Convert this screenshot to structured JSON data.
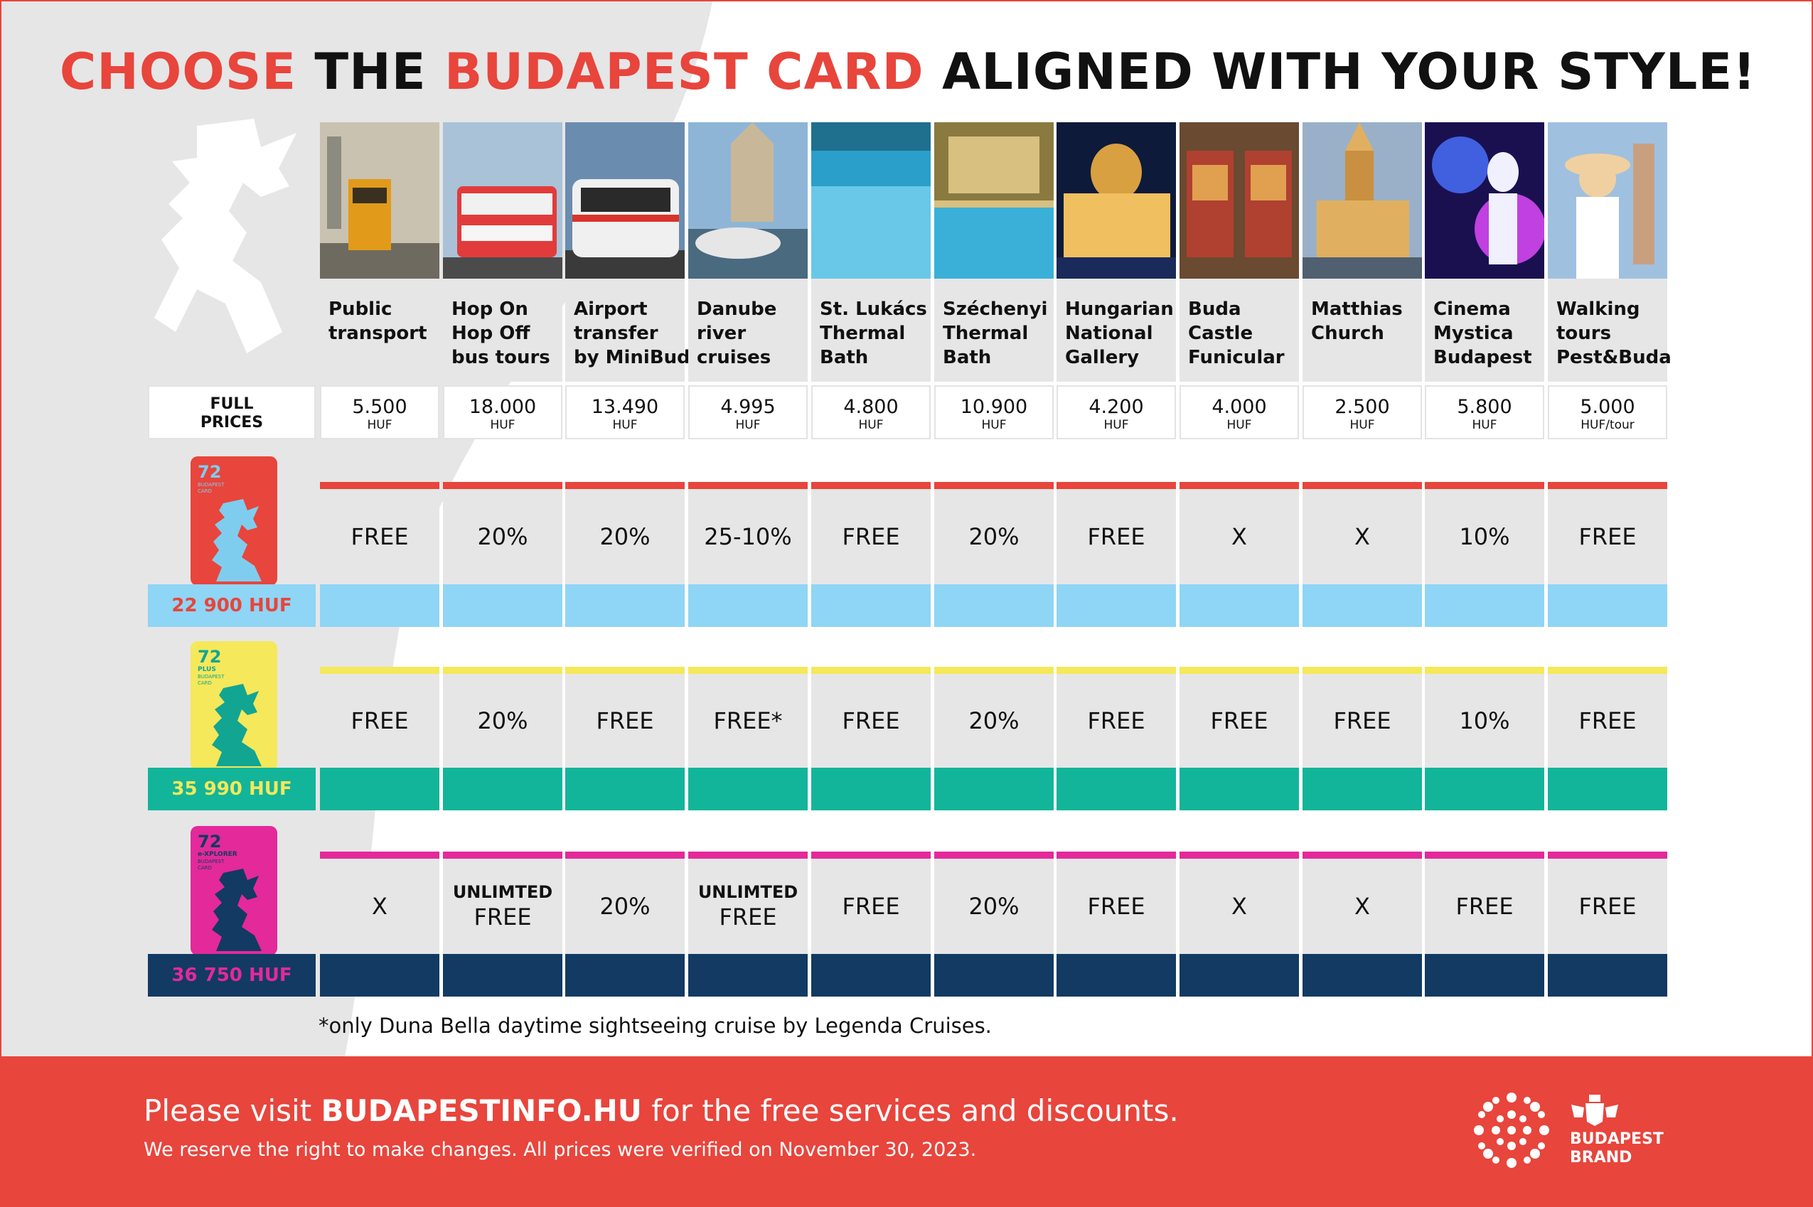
{
  "title": {
    "part1": "CHOOSE",
    "part2": "THE",
    "part3": "BUDAPEST CARD",
    "part4": "ALIGNED WITH YOUR STYLE!"
  },
  "colors": {
    "accent_red": "#e8453c",
    "gray_cell": "#e6e6e7",
    "card1_red": "#e8453c",
    "card1_band": "#8fd5f5",
    "card1_label_text": "#e8453c",
    "card2_yellow": "#f5e85a",
    "card2_band": "#12b59a",
    "card2_label_text": "#f5e85a",
    "card3_pink": "#e4299a",
    "card3_band": "#123a63",
    "card3_label_text": "#e4299a"
  },
  "full_prices_label": [
    "FULL",
    "PRICES"
  ],
  "attractions": [
    {
      "name": [
        "Public",
        "transport"
      ],
      "price": "5.500",
      "unit": "HUF",
      "image_icon": "tram-photo"
    },
    {
      "name": [
        "Hop On",
        "Hop Off",
        "bus tours"
      ],
      "price": "18.000",
      "unit": "HUF",
      "image_icon": "double-decker-bus-photo"
    },
    {
      "name": [
        "Airport",
        "transfer",
        "by MiniBud"
      ],
      "price": "13.490",
      "unit": "HUF",
      "image_icon": "minibus-photo"
    },
    {
      "name": [
        "Danube",
        "river",
        "cruises"
      ],
      "price": "4.995",
      "unit": "HUF",
      "image_icon": "river-boat-photo"
    },
    {
      "name": [
        "St. Lukács",
        "Thermal",
        "Bath"
      ],
      "price": "4.800",
      "unit": "HUF",
      "image_icon": "pool-photo"
    },
    {
      "name": [
        "Széchenyi",
        "Thermal",
        "Bath"
      ],
      "price": "10.900",
      "unit": "HUF",
      "image_icon": "thermal-bath-photo"
    },
    {
      "name": [
        "Hungarian",
        "National",
        "Gallery"
      ],
      "price": "4.200",
      "unit": "HUF",
      "image_icon": "castle-night-photo"
    },
    {
      "name": [
        "Buda",
        "Castle",
        "Funicular"
      ],
      "price": "4.000",
      "unit": "HUF",
      "image_icon": "funicular-photo"
    },
    {
      "name": [
        "Matthias",
        "Church"
      ],
      "price": "2.500",
      "unit": "HUF",
      "image_icon": "church-photo"
    },
    {
      "name": [
        "Cinema",
        "Mystica",
        "Budapest"
      ],
      "price": "5.800",
      "unit": "HUF",
      "image_icon": "cinema-photo"
    },
    {
      "name": [
        "Walking",
        "tours",
        "Pest&Buda"
      ],
      "price": "5.000",
      "unit": "HUF/tour",
      "image_icon": "walking-tour-photo"
    }
  ],
  "cards": [
    {
      "price_label": "22 900 HUF",
      "card_text": {
        "hours": "72",
        "line1": "BUDAPEST",
        "line2": "CARD"
      },
      "values": [
        {
          "main": "FREE"
        },
        {
          "main": "20%"
        },
        {
          "main": "20%"
        },
        {
          "main": "25-10%"
        },
        {
          "main": "FREE"
        },
        {
          "main": "20%"
        },
        {
          "main": "FREE"
        },
        {
          "main": "X"
        },
        {
          "main": "X"
        },
        {
          "main": "10%"
        },
        {
          "main": "FREE"
        }
      ]
    },
    {
      "price_label": "35 990 HUF",
      "card_text": {
        "hours": "72",
        "line0": "PLUS",
        "line1": "BUDAPEST",
        "line2": "CARD"
      },
      "values": [
        {
          "main": "FREE"
        },
        {
          "main": "20%"
        },
        {
          "main": "FREE"
        },
        {
          "main": "FREE*"
        },
        {
          "main": "FREE"
        },
        {
          "main": "20%"
        },
        {
          "main": "FREE"
        },
        {
          "main": "FREE"
        },
        {
          "main": "FREE"
        },
        {
          "main": "10%"
        },
        {
          "main": "FREE"
        }
      ]
    },
    {
      "price_label": "36 750 HUF",
      "card_text": {
        "hours": "72",
        "line0": "e-XPLORER",
        "line1": "BUDAPEST",
        "line2": "CARD"
      },
      "values": [
        {
          "main": "X"
        },
        {
          "sub": "UNLIMTED",
          "main": "FREE"
        },
        {
          "main": "20%"
        },
        {
          "sub": "UNLIMTED",
          "main": "FREE"
        },
        {
          "main": "FREE"
        },
        {
          "main": "20%"
        },
        {
          "main": "FREE"
        },
        {
          "main": "X"
        },
        {
          "main": "X"
        },
        {
          "main": "FREE"
        },
        {
          "main": "FREE"
        }
      ]
    }
  ],
  "footnote": "*only Duna Bella daytime sightseeing cruise by Legenda Cruises.",
  "footer": {
    "text_before": "Please visit ",
    "link": "BUDAPESTINFO.HU",
    "text_after": " for the free services and discounts.",
    "note": "We reserve the right to make changes. All prices were verified on November 30, 2023.",
    "brand_line1": "BUDAPEST",
    "brand_line2": "BRAND",
    "logo_icon": "dot-flower-logo-icon",
    "crest_icon": "coat-of-arms-icon"
  }
}
